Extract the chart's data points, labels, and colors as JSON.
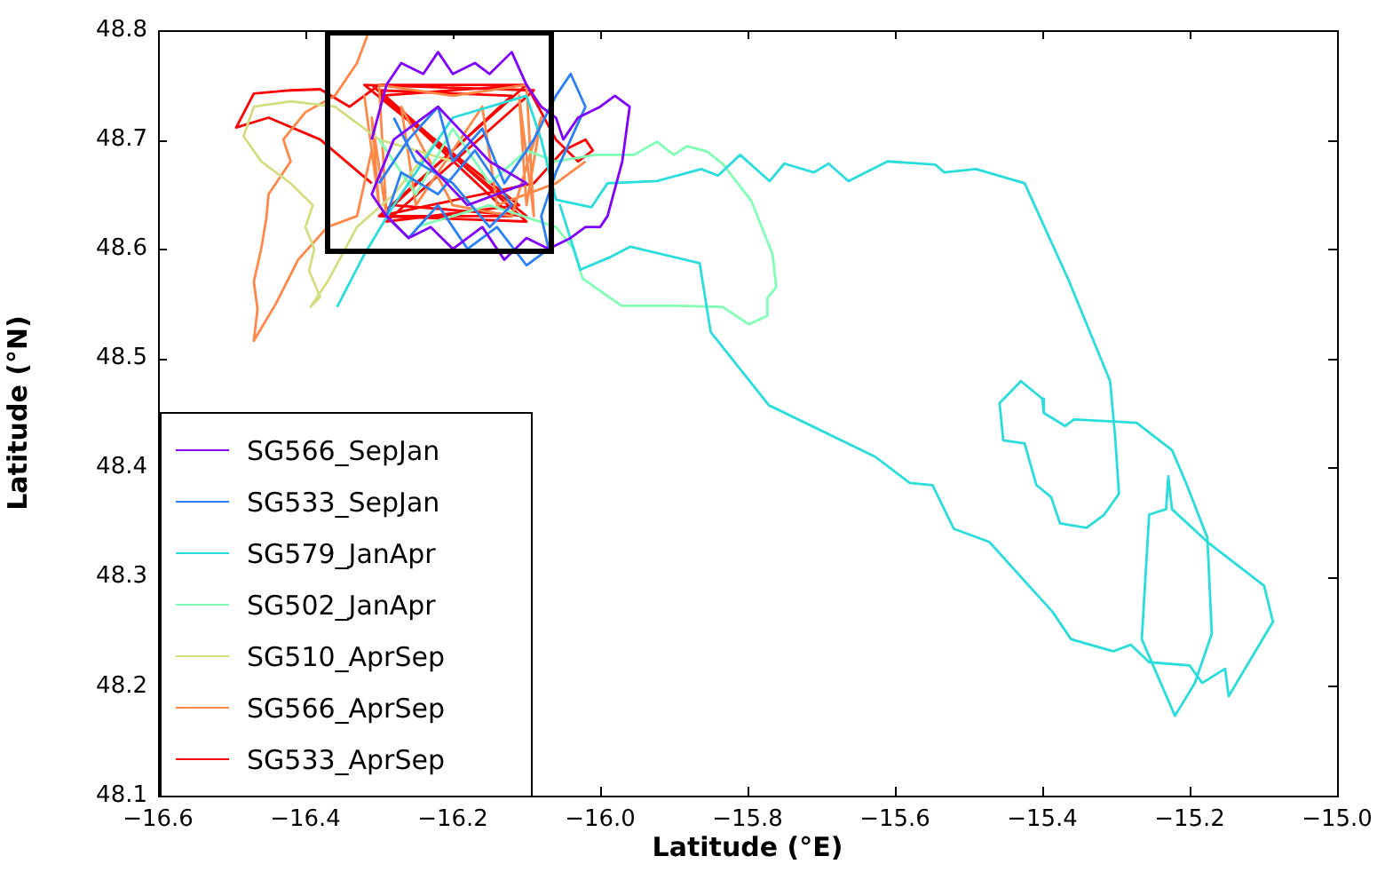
{
  "chart_data": {
    "type": "line",
    "xlabel": "Latitude (°E)",
    "ylabel": "Latitude (°N)",
    "legend": "bottom left",
    "xlim": [
      -16.6,
      -15.0
    ],
    "ylim": [
      48.1,
      48.8
    ],
    "xticks": [
      {
        "value": -16.6,
        "label": "−16.6"
      },
      {
        "value": -16.4,
        "label": "−16.4"
      },
      {
        "value": -16.2,
        "label": "−16.2"
      },
      {
        "value": -16.0,
        "label": "−16.0"
      },
      {
        "value": -15.8,
        "label": "−15.8"
      },
      {
        "value": -15.6,
        "label": "−15.6"
      },
      {
        "value": -15.4,
        "label": "−15.4"
      },
      {
        "value": -15.2,
        "label": "−15.2"
      },
      {
        "value": -15.0,
        "label": "−15.0"
      }
    ],
    "yticks": [
      48.1,
      48.2,
      48.3,
      48.4,
      48.5,
      48.6,
      48.7,
      48.8
    ],
    "series": [
      {
        "name": "SG566_SepJan",
        "color": "#8000ff",
        "x": [
          -16.31,
          -16.29,
          -16.27,
          -16.24,
          -16.22,
          -16.2,
          -16.17,
          -16.15,
          -16.12,
          -16.1,
          -16.08,
          -16.06,
          -16.05,
          -16.03,
          -16.0,
          -15.98,
          -15.96,
          -15.97,
          -15.99,
          -16.0,
          -16.02,
          -16.04,
          -16.07,
          -16.1,
          -16.13,
          -16.16,
          -16.2,
          -16.23,
          -16.26,
          -16.29,
          -16.31,
          -16.28,
          -16.22,
          -16.15,
          -16.1,
          -16.18,
          -16.25
        ],
        "values": [
          48.7,
          48.75,
          48.77,
          48.76,
          48.78,
          48.76,
          48.77,
          48.76,
          48.78,
          48.75,
          48.73,
          48.72,
          48.7,
          48.72,
          48.73,
          48.74,
          48.73,
          48.68,
          48.63,
          48.62,
          48.62,
          48.61,
          48.6,
          48.61,
          48.59,
          48.62,
          48.6,
          48.62,
          48.61,
          48.63,
          48.65,
          48.7,
          48.73,
          48.68,
          48.66,
          48.64,
          48.69
        ]
      },
      {
        "name": "SG533_SepJan",
        "color": "#2a7ff6",
        "x": [
          -16.3,
          -16.26,
          -16.22,
          -16.2,
          -16.16,
          -16.13,
          -16.09,
          -16.06,
          -16.04,
          -16.02,
          -16.04,
          -16.06,
          -16.08,
          -16.07,
          -16.1,
          -16.14,
          -16.18,
          -16.22,
          -16.26,
          -16.29,
          -16.27,
          -16.22,
          -16.17,
          -16.12,
          -16.15,
          -16.2,
          -16.25,
          -16.28
        ],
        "values": [
          48.66,
          48.7,
          48.73,
          48.68,
          48.71,
          48.66,
          48.7,
          48.74,
          48.76,
          48.73,
          48.7,
          48.67,
          48.63,
          48.6,
          48.585,
          48.62,
          48.6,
          48.64,
          48.61,
          48.63,
          48.67,
          48.65,
          48.69,
          48.64,
          48.62,
          48.66,
          48.68,
          48.72
        ]
      },
      {
        "name": "SG579_JanApr",
        "color": "#2adddd",
        "x": [
          -16.357,
          -16.32,
          -16.28,
          -16.2,
          -16.1,
          -16.08,
          -16.06,
          -16.012,
          -15.99,
          -15.923,
          -15.863,
          -15.84,
          -15.81,
          -15.77,
          -15.75,
          -15.71,
          -15.69,
          -15.663,
          -15.61,
          -15.545,
          -15.533,
          -15.49,
          -15.424,
          -15.364,
          -15.308,
          -15.301,
          -15.296,
          -15.316,
          -15.34,
          -15.376,
          -15.388,
          -15.408,
          -15.424,
          -15.453,
          -15.458,
          -15.429,
          -15.4,
          -15.398,
          -15.369,
          -15.357,
          -15.272,
          -15.224,
          -15.205,
          -15.176,
          -15.17,
          -15.193,
          -15.22,
          -15.265,
          -15.255,
          -15.232,
          -15.229,
          -15.224,
          -15.176,
          -15.099,
          -15.087,
          -15.147,
          -15.152,
          -15.183,
          -15.2,
          -15.255,
          -15.28,
          -15.304,
          -15.361,
          -15.386,
          -15.472,
          -15.52,
          -15.549,
          -15.58,
          -15.627,
          -15.771,
          -15.85,
          -15.865,
          -15.959,
          -15.988,
          -16.027,
          -16.055
        ],
        "values": [
          48.547,
          48.595,
          48.64,
          48.72,
          48.74,
          48.7,
          48.645,
          48.638,
          48.66,
          48.662,
          48.673,
          48.667,
          48.686,
          48.662,
          48.678,
          48.67,
          48.678,
          48.662,
          48.68,
          48.677,
          48.67,
          48.673,
          48.66,
          48.571,
          48.479,
          48.427,
          48.376,
          48.357,
          48.345,
          48.349,
          48.373,
          48.384,
          48.422,
          48.425,
          48.459,
          48.479,
          48.463,
          48.45,
          48.438,
          48.444,
          48.441,
          48.416,
          48.386,
          48.336,
          48.248,
          48.203,
          48.173,
          48.243,
          48.357,
          48.362,
          48.392,
          48.362,
          48.332,
          48.292,
          48.259,
          48.191,
          48.216,
          48.203,
          48.219,
          48.222,
          48.238,
          48.232,
          48.243,
          48.268,
          48.332,
          48.344,
          48.384,
          48.386,
          48.41,
          48.457,
          48.524,
          48.587,
          48.602,
          48.592,
          48.581,
          48.641
        ]
      },
      {
        "name": "SG502_JanApr",
        "color": "#80ffb4",
        "x": [
          -16.3,
          -16.25,
          -16.2,
          -16.15,
          -16.1,
          -16.06,
          -16.007,
          -15.954,
          -15.923,
          -15.9,
          -15.882,
          -15.855,
          -15.834,
          -15.795,
          -15.766,
          -15.761,
          -15.773,
          -15.773,
          -15.798,
          -15.834,
          -15.9,
          -15.971,
          -16.024,
          -16.036,
          -16.06,
          -16.15,
          -16.25
        ],
        "values": [
          48.7,
          48.65,
          48.71,
          48.66,
          48.69,
          48.68,
          48.686,
          48.686,
          48.698,
          48.686,
          48.694,
          48.689,
          48.678,
          48.644,
          48.595,
          48.565,
          48.555,
          48.539,
          48.531,
          48.547,
          48.548,
          48.548,
          48.573,
          48.6,
          48.62,
          48.64,
          48.62
        ]
      },
      {
        "name": "SG510_AprSep",
        "color": "#d4dd80",
        "x": [
          -16.2,
          -16.3,
          -16.36,
          -16.42,
          -16.47,
          -16.484,
          -16.46,
          -16.42,
          -16.39,
          -16.4,
          -16.388,
          -16.395,
          -16.38,
          -16.393,
          -16.37,
          -16.33,
          -16.28,
          -16.22
        ],
        "values": [
          48.68,
          48.7,
          48.73,
          48.735,
          48.73,
          48.703,
          48.68,
          48.66,
          48.64,
          48.62,
          48.6,
          48.58,
          48.556,
          48.547,
          48.57,
          48.62,
          48.65,
          48.7
        ]
      },
      {
        "name": "SG566_AprSep",
        "color": "#ff8748",
        "x": [
          -16.316,
          -16.33,
          -16.36,
          -16.4,
          -16.43,
          -16.42,
          -16.45,
          -16.453,
          -16.46,
          -16.47,
          -16.465,
          -16.47,
          -16.44,
          -16.41,
          -16.37,
          -16.33,
          -16.31,
          -16.32,
          -16.3,
          -16.31,
          -16.29,
          -16.3,
          -16.2,
          -16.1,
          -16.09,
          -16.11,
          -16.1,
          -16.08,
          -16.12,
          -16.2,
          -16.27,
          -16.25,
          -16.16,
          -16.14,
          -16.06,
          -16.02
        ],
        "values": [
          48.795,
          48.77,
          48.74,
          48.725,
          48.7,
          48.68,
          48.65,
          48.628,
          48.6,
          48.57,
          48.545,
          48.516,
          48.55,
          48.59,
          48.62,
          48.63,
          48.69,
          48.74,
          48.64,
          48.72,
          48.63,
          48.75,
          48.74,
          48.75,
          48.63,
          48.74,
          48.64,
          48.72,
          48.63,
          48.64,
          48.73,
          48.64,
          48.73,
          48.64,
          48.66,
          48.68
        ]
      },
      {
        "name": "SG533_AprSep",
        "color": "#ff0000",
        "x": [
          -16.31,
          -16.38,
          -16.45,
          -16.494,
          -16.47,
          -16.42,
          -16.38,
          -16.34,
          -16.3,
          -16.1,
          -16.3,
          -16.1,
          -16.3,
          -16.12,
          -16.28,
          -16.1,
          -16.32,
          -16.09,
          -16.29,
          -16.11,
          -16.3,
          -16.1,
          -16.06,
          -16.03,
          -16.01,
          -16.02,
          -16.05,
          -16.09,
          -16.3,
          -16.12,
          -16.31
        ],
        "values": [
          48.66,
          48.7,
          48.72,
          48.711,
          48.742,
          48.745,
          48.746,
          48.73,
          48.75,
          48.75,
          48.63,
          48.625,
          48.745,
          48.74,
          48.64,
          48.63,
          48.75,
          48.745,
          48.625,
          48.64,
          48.74,
          48.75,
          48.7,
          48.68,
          48.69,
          48.7,
          48.69,
          48.66,
          48.63,
          48.63,
          48.75
        ]
      }
    ]
  }
}
